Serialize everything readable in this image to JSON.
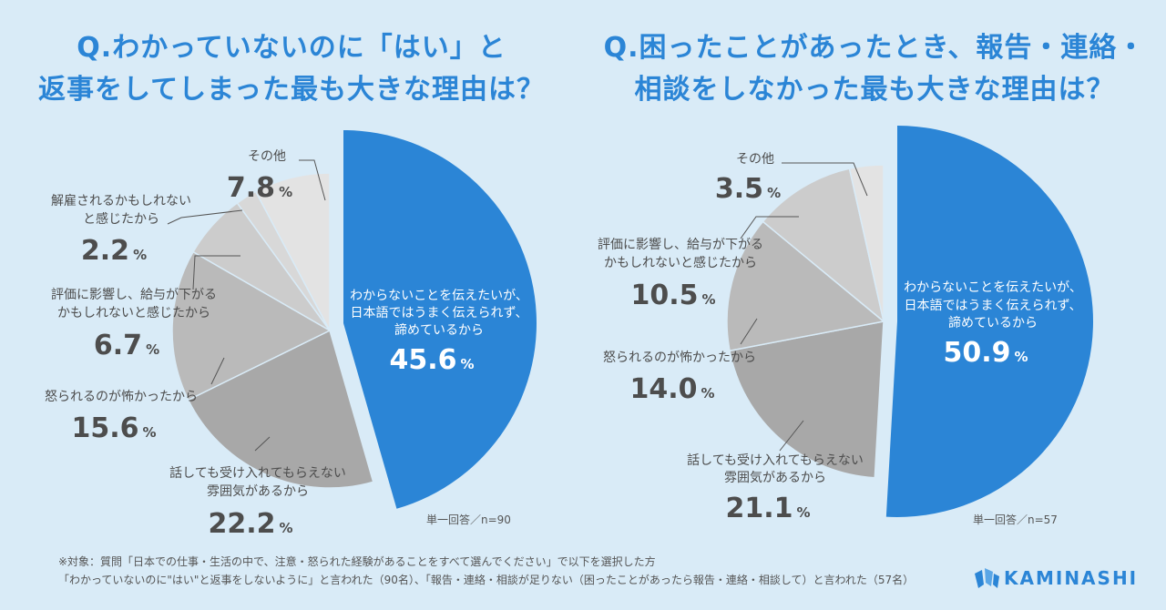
{
  "titles": {
    "left": [
      "Q.わかっていないのに「はい」と",
      "返事をしてしまった最も大きな理由は？"
    ],
    "right": [
      "Q.困ったことがあったとき、報告・連絡・",
      "相談をしなかった最も大きな理由は？"
    ]
  },
  "notes": {
    "left": "単一回答／n=90",
    "right": "単一回答／n=57"
  },
  "footnote": [
    "※対象：質問「日本での仕事・生活の中で、注意・怒られた経験があることをすべて選んでください」で以下を選択した方",
    "「わかっていないのに\"はい\"と返事をしないように」と言われた（90名）、「報告・連絡・相談が足りない（困ったことがあったら報告・連絡・相談して）と言われた（57名）"
  ],
  "brand": {
    "name": "KAMINASHI",
    "color": "#2b85d6"
  },
  "chart_data": [
    {
      "type": "pie",
      "title": "Q.わかっていないのに「はい」と返事をしてしまった最も大きな理由は？",
      "unit": "%",
      "slices": [
        {
          "label": [
            "わからないことを伝えたいが、",
            "日本語ではうまく伝えられず、",
            "諦めているから"
          ],
          "value": 45.6,
          "value_text": "45.6",
          "color": "#2b85d6",
          "highlight": true
        },
        {
          "label": [
            "話しても受け入れてもらえない",
            "雰囲気があるから"
          ],
          "value": 22.2,
          "value_text": "22.2",
          "color": "#a8a8a8"
        },
        {
          "label": [
            "怒られるのが怖かったから"
          ],
          "value": 15.6,
          "value_text": "15.6",
          "color": "#bababa"
        },
        {
          "label": [
            "評価に影響し、給与が下がる",
            "かもしれないと感じたから"
          ],
          "value": 6.7,
          "value_text": "6.7",
          "color": "#cccccc"
        },
        {
          "label": [
            "解雇されるかもしれない",
            "と感じたから"
          ],
          "value": 2.2,
          "value_text": "2.2",
          "color": "#d8d8d8"
        },
        {
          "label": [
            "その他"
          ],
          "value": 7.8,
          "value_text": "7.8",
          "color": "#e3e3e3"
        }
      ]
    },
    {
      "type": "pie",
      "title": "Q.困ったことがあったとき、報告・連絡・相談をしなかった最も大きな理由は？",
      "unit": "%",
      "slices": [
        {
          "label": [
            "わからないことを伝えたいが、",
            "日本語ではうまく伝えられず、",
            "諦めているから"
          ],
          "value": 50.9,
          "value_text": "50.9",
          "color": "#2b85d6",
          "highlight": true
        },
        {
          "label": [
            "話しても受け入れてもらえない",
            "雰囲気があるから"
          ],
          "value": 21.1,
          "value_text": "21.1",
          "color": "#a8a8a8"
        },
        {
          "label": [
            "怒られるのが怖かったから"
          ],
          "value": 14.0,
          "value_text": "14.0",
          "color": "#bababa"
        },
        {
          "label": [
            "評価に影響し、給与が下がる",
            "かもしれないと感じたから"
          ],
          "value": 10.5,
          "value_text": "10.5",
          "color": "#cccccc"
        },
        {
          "label": [
            "その他"
          ],
          "value": 3.5,
          "value_text": "3.5",
          "color": "#e3e3e3"
        }
      ]
    }
  ]
}
